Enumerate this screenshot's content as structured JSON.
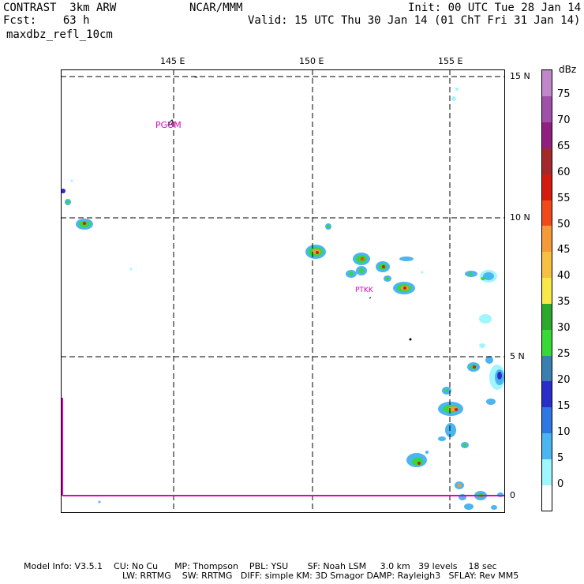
{
  "header": {
    "experiment": "CONTRAST  3km ARW",
    "forecast": "Fcst:    63 h",
    "field": "maxdbz_refl_10cm",
    "center": "NCAR/MMM",
    "init": "Init: 00 UTC Tue 28 Jan 14",
    "valid": "Valid: 15 UTC Thu 30 Jan 14 (01 ChT Fri 31 Jan 14)"
  },
  "map": {
    "lon_labels": [
      "145 E",
      "150 E",
      "155 E"
    ],
    "lat_labels": [
      "15 N",
      "10 N",
      "5 N",
      "0"
    ],
    "stations": [
      "PGUM",
      "PTKK"
    ]
  },
  "legend": {
    "unit": "dBz",
    "ticks": [
      "75",
      "70",
      "65",
      "60",
      "55",
      "50",
      "45",
      "40",
      "35",
      "30",
      "25",
      "20",
      "15",
      "10",
      "5",
      "0"
    ],
    "colors": [
      "#ffffff",
      "#9ff6ff",
      "#4bb5ef",
      "#2f78e3",
      "#2a2ec8",
      "#3b7fb0",
      "#36d936",
      "#2ca82c",
      "#f9e84a",
      "#f6c040",
      "#f59a3a",
      "#f04a1a",
      "#d21c10",
      "#a32a2a",
      "#902080",
      "#a050a8",
      "#c088c8"
    ]
  },
  "footer": {
    "line1": "Model Info: V3.5.1    CU: No Cu      MP: Thompson    PBL: YSU       SF: Noah LSM     3.0 km   39 levels    18 sec",
    "line2": "LW: RRTMG    SW: RRTMG   DIFF: simple KM: 3D Smagor DAMP: Rayleigh3   SFLAY: Rev MM5"
  }
}
